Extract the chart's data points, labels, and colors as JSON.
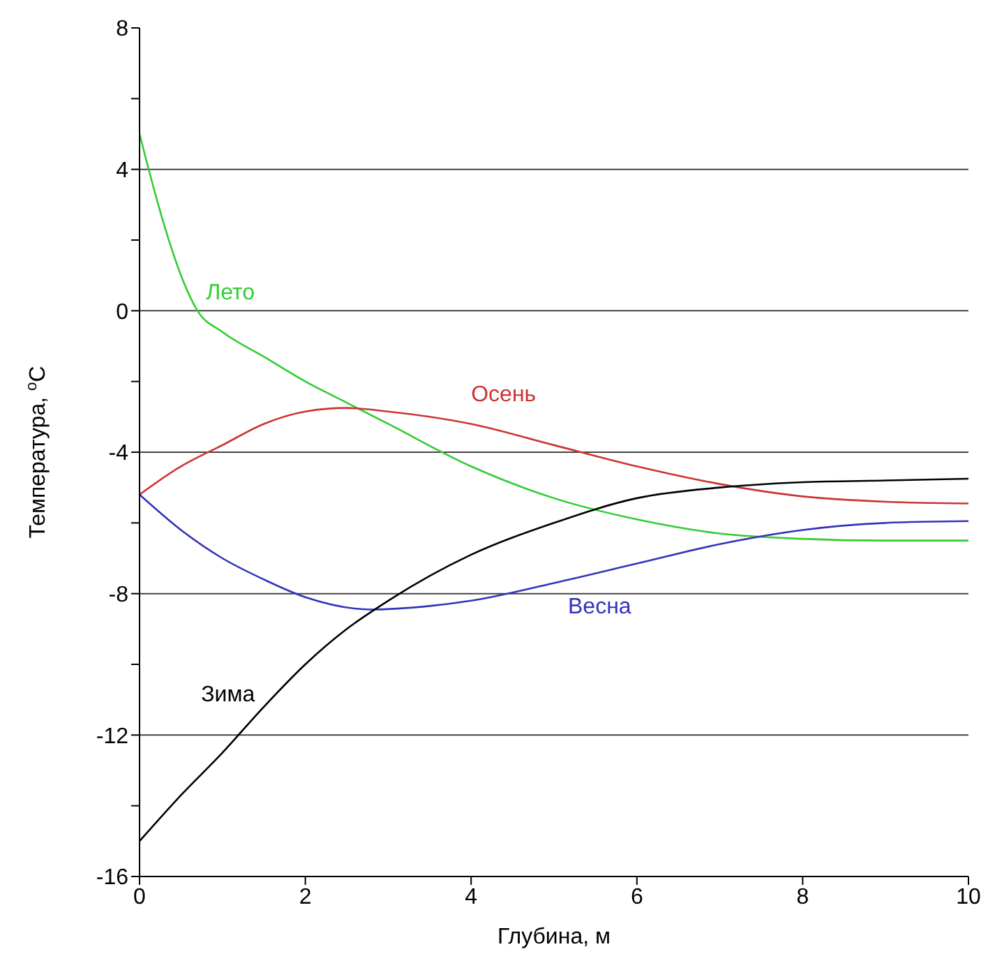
{
  "chart_data": {
    "type": "line",
    "xlabel": "Глубина, м",
    "ylabel": "Температура, $^{o}$C",
    "xlim": [
      0,
      10
    ],
    "xticks": [
      0,
      2,
      4,
      6,
      8,
      10
    ],
    "ylim": [
      -16,
      8
    ],
    "yticks": [
      -16,
      {
        "value": -14,
        "label": null
      },
      -12,
      {
        "value": -10,
        "label": null
      },
      -8,
      {
        "value": -6,
        "label": null
      },
      -4,
      {
        "value": -2,
        "label": null
      },
      0,
      {
        "value": 2,
        "label": null
      },
      4,
      {
        "value": 6,
        "label": null
      },
      8
    ],
    "grid": "y",
    "legend": false,
    "marker": "none",
    "line_style": "solid",
    "series": [
      {
        "name": "Лето",
        "color": "#33cc33",
        "x": [
          0,
          0.3,
          0.5,
          0.7,
          1,
          1.5,
          2,
          2.5,
          3,
          4,
          5,
          6,
          7,
          8,
          9,
          10
        ],
        "values": [
          5,
          2.4,
          1.0,
          0,
          -0.6,
          -1.3,
          -2.0,
          -2.6,
          -3.2,
          -4.4,
          -5.3,
          -5.9,
          -6.3,
          -6.45,
          -6.5,
          -6.5
        ]
      },
      {
        "name": "Осень",
        "color": "#cc3333",
        "x": [
          0,
          0.5,
          1,
          1.5,
          2,
          2.5,
          3,
          4,
          5,
          6,
          7,
          8,
          9,
          10
        ],
        "values": [
          -5.2,
          -4.4,
          -3.8,
          -3.2,
          -2.85,
          -2.75,
          -2.85,
          -3.2,
          -3.8,
          -4.4,
          -4.9,
          -5.25,
          -5.4,
          -5.45
        ]
      },
      {
        "name": "Весна",
        "color": "#3333bb",
        "x": [
          0,
          0.5,
          1,
          1.5,
          2,
          2.8,
          3.5,
          4,
          5,
          6,
          7,
          8,
          9,
          10
        ],
        "values": [
          -5.2,
          -6.2,
          -7.0,
          -7.6,
          -8.1,
          -8.45,
          -8.35,
          -8.2,
          -7.7,
          -7.15,
          -6.6,
          -6.2,
          -6.0,
          -5.95
        ]
      },
      {
        "name": "Зима",
        "color": "#000000",
        "x": [
          0,
          0.5,
          1,
          1.5,
          2,
          2.5,
          3,
          4,
          5,
          6,
          7,
          8,
          9,
          10
        ],
        "values": [
          -15,
          -13.7,
          -12.5,
          -11.2,
          -10.0,
          -9.0,
          -8.2,
          -6.9,
          -6.0,
          -5.3,
          -5.0,
          -4.85,
          -4.8,
          -4.75
        ]
      }
    ]
  }
}
